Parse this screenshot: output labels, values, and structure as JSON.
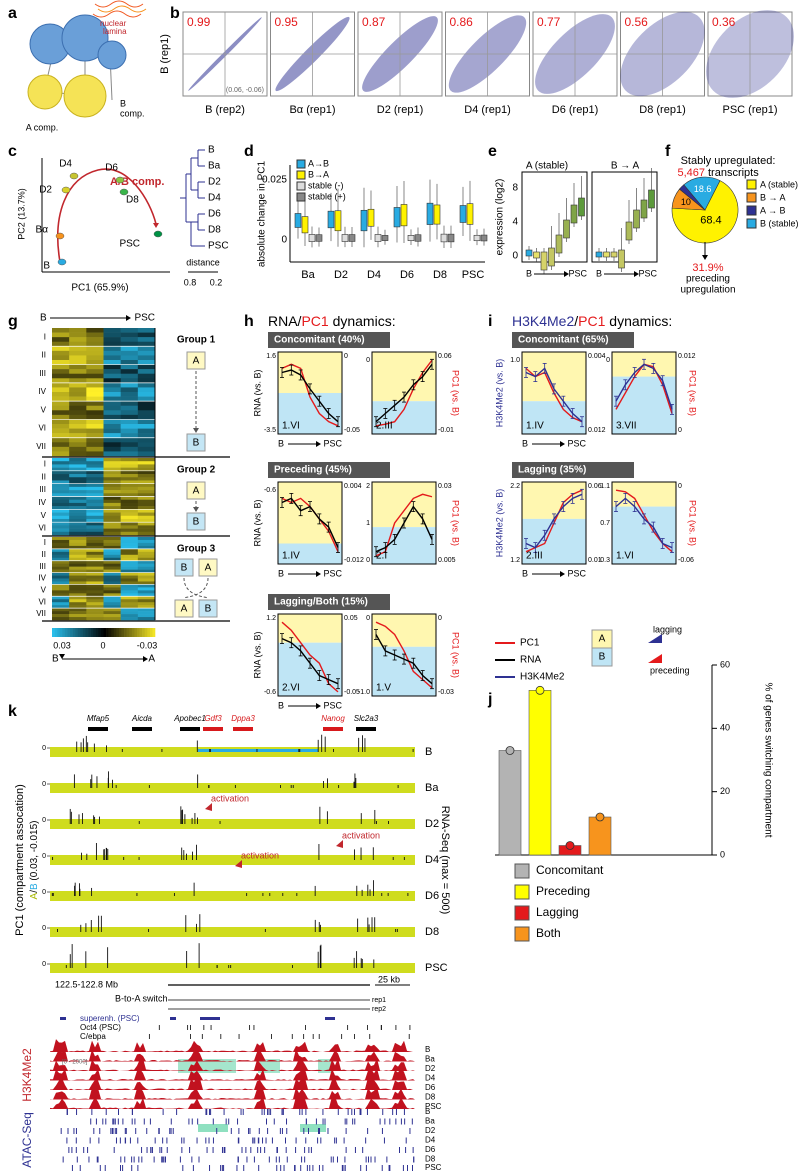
{
  "panel_letters": [
    "a",
    "b",
    "c",
    "d",
    "e",
    "f",
    "g",
    "h",
    "i",
    "j",
    "k"
  ],
  "a": {
    "lamina": [
      "nuclear",
      "lamina"
    ],
    "a_comp": "A comp.",
    "b_comp": [
      "B",
      "comp."
    ]
  },
  "b": {
    "ylabel": "B (rep1)",
    "note": "(0.06, -0.06)",
    "plots": [
      {
        "r": "0.99",
        "label": "B (rep2)"
      },
      {
        "r": "0.95",
        "label": "Bα (rep1)"
      },
      {
        "r": "0.87",
        "label": "D2 (rep1)"
      },
      {
        "r": "0.86",
        "label": "D4 (rep1)"
      },
      {
        "r": "0.77",
        "label": "D6 (rep1)"
      },
      {
        "r": "0.56",
        "label": "D8 (rep1)"
      },
      {
        "r": "0.36",
        "label": "PSC (rep1)"
      }
    ]
  },
  "c": {
    "title": "A/B comp.",
    "ylabel": "PC2 (13.7%)",
    "xlabel": "PC1 (65.9%)",
    "points": [
      "D4",
      "D6",
      "D2",
      "D8",
      "Bα",
      "B",
      "PSC"
    ],
    "tree": [
      "B",
      "Ba",
      "D2",
      "D4",
      "D6",
      "D8",
      "PSC"
    ],
    "distance": "distance",
    "scale": [
      "0.8",
      "0.2"
    ]
  },
  "d": {
    "ylabel": "absolute change in PC1",
    "yticks": [
      "0.025",
      "0"
    ],
    "categories": [
      "Ba",
      "D2",
      "D4",
      "D6",
      "D8",
      "PSC"
    ],
    "legend": [
      "A→B",
      "B→A",
      "stable (-)",
      "stable (+)"
    ]
  },
  "e": {
    "titles": [
      "A (stable)",
      "B → A"
    ],
    "ylabel": "expression (log2)",
    "yticks": [
      "8",
      "4",
      "0"
    ],
    "xlabels": [
      "B",
      "PSC"
    ]
  },
  "g": {
    "from": "B",
    "to": "PSC",
    "groups": [
      {
        "name": "Group 1",
        "clusters": [
          "I",
          "II",
          "III",
          "IV",
          "V",
          "VI",
          "VII"
        ],
        "boxes": [
          "A",
          "B"
        ]
      },
      {
        "name": "Group 2",
        "clusters": [
          "I",
          "II",
          "III",
          "IV",
          "V",
          "VI"
        ],
        "boxes": [
          "A",
          "B"
        ]
      },
      {
        "name": "Group 3",
        "clusters": [
          "I",
          "II",
          "III",
          "IV",
          "V",
          "VI",
          "VII"
        ],
        "boxes": [
          "B",
          "A",
          "A",
          "B"
        ]
      }
    ],
    "colorbar": [
      "0.03",
      "0",
      "-0.03"
    ],
    "axis": [
      "B",
      "A"
    ]
  },
  "h": {
    "title": [
      "RNA/",
      "PC1",
      " dynamics:"
    ],
    "ylabel_left": "RNA (vs. B)",
    "ylabel_right": "PC1 (vs. B)",
    "x_from": "B",
    "x_to": "PSC",
    "sections": [
      {
        "name": "Concomitant (40%)",
        "plots": [
          {
            "label": "1.VI",
            "left": [
              "1.6",
              "-3.5"
            ],
            "right": [
              "0",
              "-0.05"
            ]
          },
          {
            "label": "2.III",
            "left": [
              "0"
            ],
            "right": [
              "0.06",
              "-0.01"
            ]
          }
        ]
      },
      {
        "name": "Preceding (45%)",
        "plots": [
          {
            "label": "1.IV",
            "left": [
              "-0.6"
            ],
            "right": [
              "0.004",
              "-0.012"
            ]
          },
          {
            "label": "2.I",
            "left": [
              "2",
              "1",
              "0"
            ],
            "right": [
              "0.03",
              "0.005"
            ]
          }
        ]
      },
      {
        "name": "Lagging/Both (15%)",
        "plots": [
          {
            "label": "2.VI",
            "left": [
              "1.2",
              "-0.6"
            ],
            "right": [
              "0.05",
              "-0.05"
            ]
          },
          {
            "label": "1.V",
            "left": [
              "0",
              "-1.0"
            ],
            "right": [
              "0",
              "-0.03"
            ]
          }
        ]
      }
    ]
  },
  "i": {
    "title": [
      "H3K4Me2",
      "/",
      "PC1",
      " dynamics:"
    ],
    "ylabel_left": "H3K4Me2 (vs. B)",
    "ylabel_right": "PC1 (vs. B)",
    "x_from": "B",
    "x_to": "PSC",
    "sections": [
      {
        "name": "Concomitant (65%)",
        "plots": [
          {
            "label": "1.IV",
            "left": [
              "1.0"
            ],
            "right": [
              "0.004",
              "0.012"
            ]
          },
          {
            "label": "3.VII",
            "left": [
              "0"
            ],
            "right": [
              "0.012",
              "0"
            ]
          }
        ]
      },
      {
        "name": "Lagging (35%)",
        "plots": [
          {
            "label": "2.III",
            "left": [
              "2.2",
              "1.2"
            ],
            "right": [
              "0.06",
              "0.01"
            ]
          },
          {
            "label": "1.VI",
            "left": [
              "1.1",
              "0.7",
              "0.3"
            ],
            "right": [
              "0",
              "-0.06"
            ]
          }
        ]
      }
    ]
  },
  "legend": {
    "lines": [
      "PC1",
      "RNA",
      "H3K4Me2"
    ],
    "boxes": [
      "A",
      "B"
    ],
    "arrows": [
      "lagging",
      "preceding"
    ]
  },
  "k": {
    "genes": [
      {
        "name": "Mfap5",
        "color": "#000000"
      },
      {
        "name": "Aicda",
        "color": "#000000"
      },
      {
        "name": "Apobec1",
        "color": "#000000"
      },
      {
        "name": "Gdf3",
        "color": "#d7191c"
      },
      {
        "name": "Dppa3",
        "color": "#d7191c"
      },
      {
        "name": "Nanog",
        "color": "#d7191c"
      },
      {
        "name": "Slc2a3",
        "color": "#000000"
      }
    ],
    "tracks": [
      "B",
      "Ba",
      "D2",
      "D4",
      "D6",
      "D8",
      "PSC"
    ],
    "tick": "0",
    "activation": [
      "activation",
      "activation",
      "activation"
    ],
    "ylabel": "PC1 (compartment assocation)",
    "ylabel2": [
      "A",
      "/",
      "B",
      " (0.03, -0.015)"
    ],
    "rnaseq": "RNA-Seq (max = 500)",
    "coords": "122.5-122.8 Mb",
    "switch": "B-to-A switch",
    "scale": "25 kb",
    "reps": [
      "rep1",
      "rep2"
    ],
    "features": [
      "superenh. (PSC)",
      "Oct4 (PSC)",
      "C/ebpa"
    ],
    "h3k4me2": "H3K4Me2",
    "range": "[0 - 2000]",
    "atac": "ATAC-Seq"
  },
  "chart_data": [
    {
      "type": "pie",
      "title": "Stably upregulated:",
      "subtitle_count": "5,467",
      "subtitle": "transcripts",
      "categories": [
        "A (stable)",
        "B → A",
        "A → B",
        "B (stable)"
      ],
      "values": [
        68.4,
        10,
        3,
        18.6
      ],
      "colors": [
        "#fff200",
        "#f7941d",
        "#2e3192",
        "#29abe2"
      ],
      "annotation": "31.9%",
      "annotation_text": [
        "preceding",
        "upregulation"
      ]
    },
    {
      "type": "bar",
      "categories": [
        "Concomitant",
        "Preceding",
        "Lagging",
        "Both"
      ],
      "values": [
        33,
        52,
        3,
        12
      ],
      "colors": [
        "#b3b3b3",
        "#ffff00",
        "#e41a1c",
        "#f7941d"
      ],
      "ylim": [
        0,
        60
      ],
      "yticks": [
        0,
        20,
        40,
        60
      ],
      "ylabel": "% of genes switching compartment"
    }
  ]
}
